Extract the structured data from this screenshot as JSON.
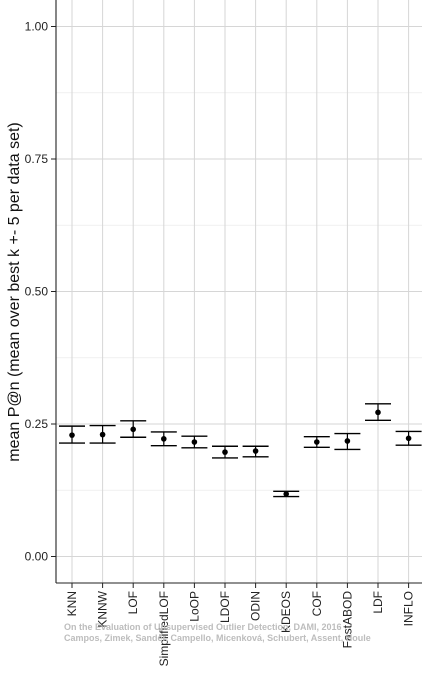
{
  "chart_data": {
    "type": "scatter",
    "title": "",
    "xlabel": "",
    "ylabel": "mean P@n (mean over best k +- 5 per data set)",
    "ylim": [
      -0.05,
      1.05
    ],
    "yticks": [
      0.0,
      0.25,
      0.5,
      0.75,
      1.0
    ],
    "ytick_labels": [
      "0.00",
      "0.25",
      "0.50",
      "0.75",
      "1.00"
    ],
    "grid": true,
    "categories": [
      "KNN",
      "KNNW",
      "LOF",
      "SimplifiedLOF",
      "LoOP",
      "LDOF",
      "ODIN",
      "KDEOS",
      "COF",
      "FastABOD",
      "LDF",
      "INFLO"
    ],
    "mean": [
      0.229,
      0.23,
      0.24,
      0.222,
      0.216,
      0.197,
      0.199,
      0.118,
      0.216,
      0.218,
      0.272,
      0.223
    ],
    "upper": [
      0.246,
      0.247,
      0.256,
      0.235,
      0.227,
      0.208,
      0.208,
      0.123,
      0.226,
      0.232,
      0.288,
      0.236
    ],
    "lower": [
      0.214,
      0.214,
      0.225,
      0.209,
      0.205,
      0.186,
      0.188,
      0.113,
      0.206,
      0.202,
      0.257,
      0.21
    ]
  },
  "watermark": {
    "line1": "On the Evaluation of Unsupervised Outlier Detection, DAMI, 2016",
    "line2": "Campos, Zimek, Sander, Campello, Micenková, Schubert, Assent, Houle"
  }
}
